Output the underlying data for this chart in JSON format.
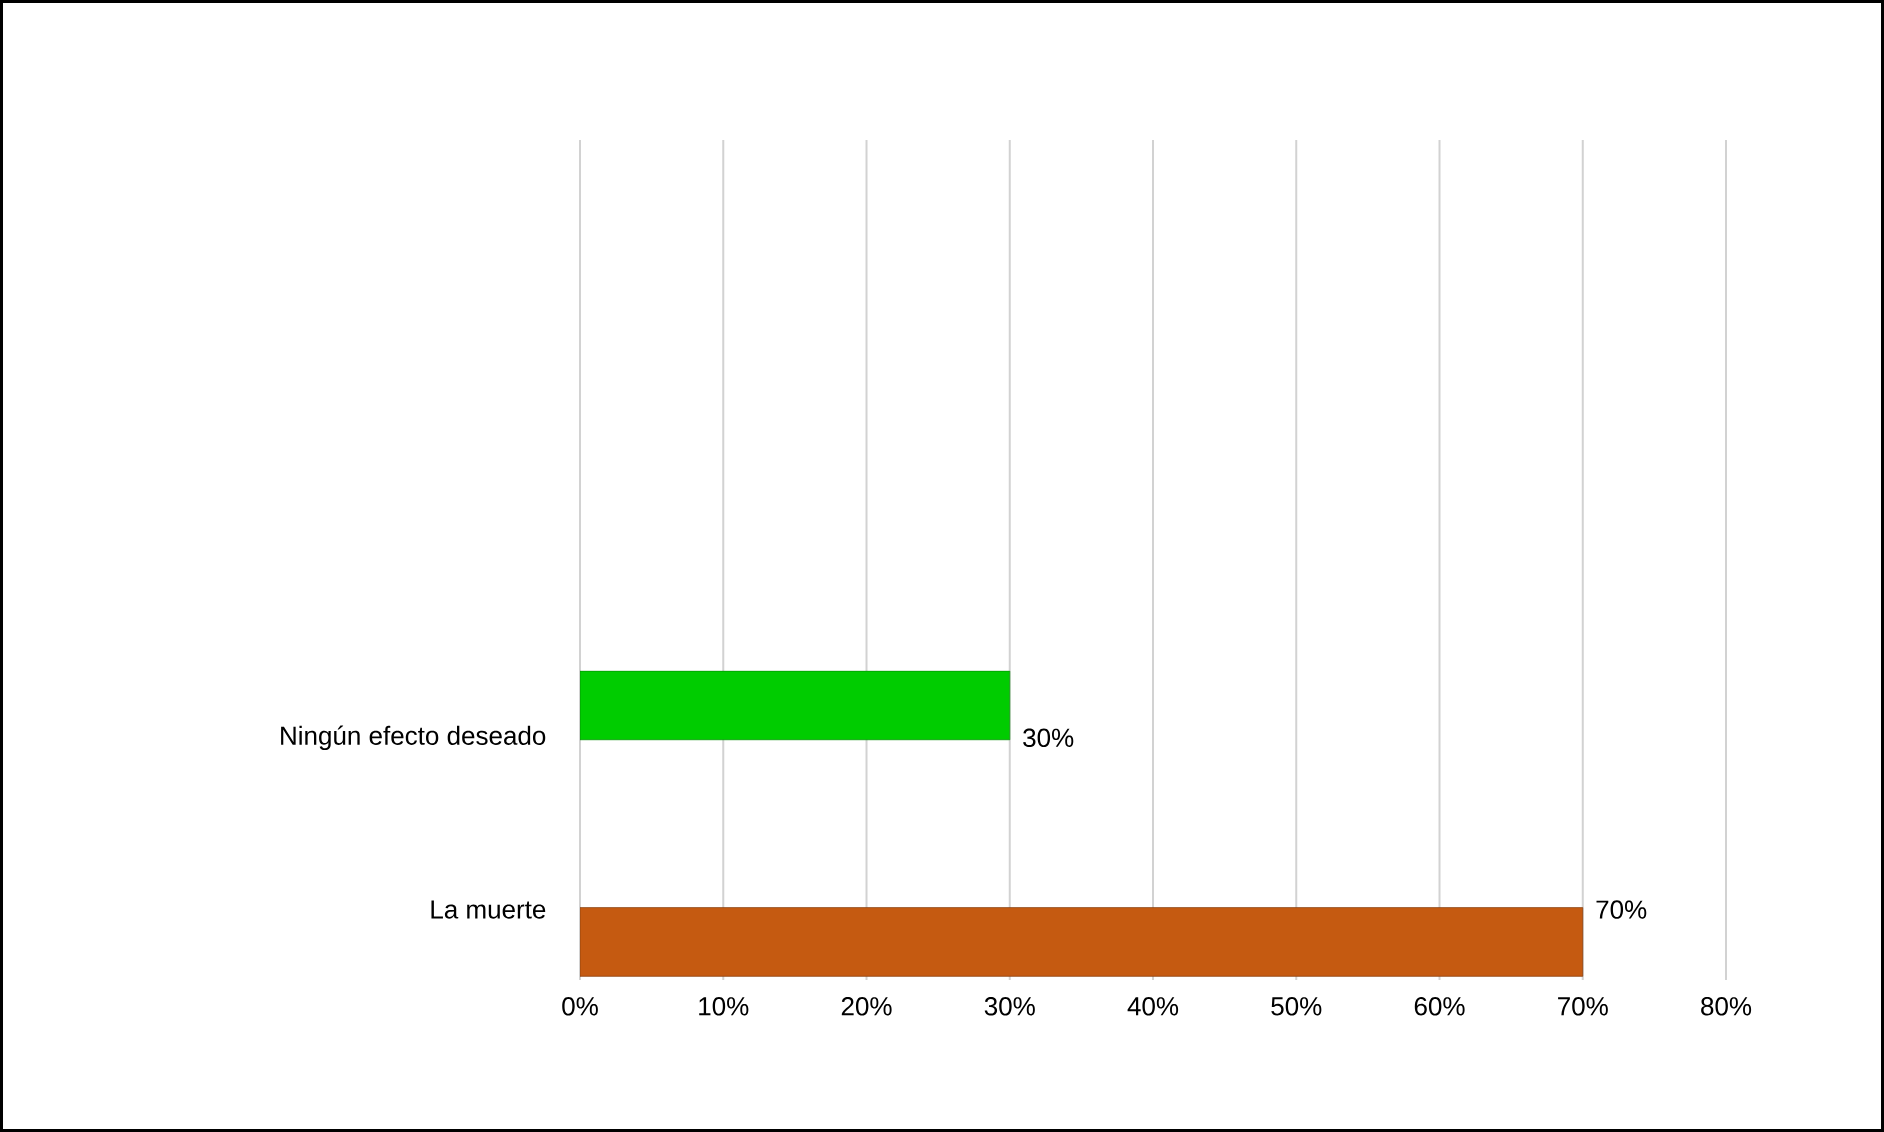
{
  "chart_data": {
    "type": "bar",
    "orientation": "horizontal",
    "categories": [
      "Ningún efecto deseado",
      "La muerte"
    ],
    "values": [
      30,
      70
    ],
    "colors": [
      "#00cc00",
      "#c55a11"
    ],
    "value_labels": [
      "30%",
      "70%"
    ],
    "xlim": [
      0,
      80
    ],
    "xticks": [
      {
        "value": 0,
        "label": "0%"
      },
      {
        "value": 10,
        "label": "10%"
      },
      {
        "value": 20,
        "label": "20%"
      },
      {
        "value": 30,
        "label": "30%"
      },
      {
        "value": 40,
        "label": "40%"
      },
      {
        "value": 50,
        "label": "50%"
      },
      {
        "value": 60,
        "label": "60%"
      },
      {
        "value": 70,
        "label": "70%"
      },
      {
        "value": 80,
        "label": "80%"
      }
    ],
    "grid": "x"
  }
}
